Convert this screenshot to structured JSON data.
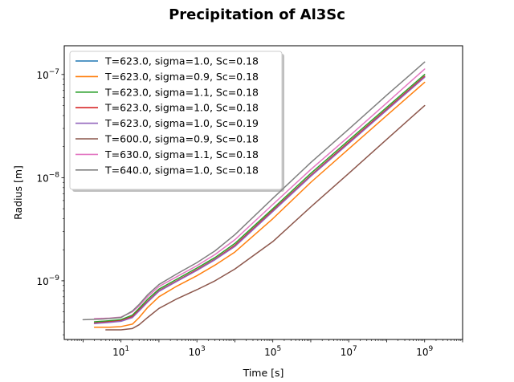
{
  "chart_data": {
    "type": "line",
    "title": "Precipitation of Al3Sc",
    "xlabel": "Time [s]",
    "ylabel": "Radius [m]",
    "xscale": "log",
    "yscale": "log",
    "xlim": [
      0.32,
      10000000000
    ],
    "ylim": [
      2.7e-10,
      1.9e-07
    ],
    "grid": false,
    "legend_position": "upper-left",
    "x_ticks": [
      {
        "value": 10,
        "base": "10",
        "exp": "1"
      },
      {
        "value": 1000,
        "base": "10",
        "exp": "3"
      },
      {
        "value": 100000,
        "base": "10",
        "exp": "5"
      },
      {
        "value": 10000000,
        "base": "10",
        "exp": "7"
      },
      {
        "value": 1000000000,
        "base": "10",
        "exp": "9"
      }
    ],
    "y_ticks": [
      {
        "value": 1e-09,
        "base": "10",
        "exp": "−9"
      },
      {
        "value": 1e-08,
        "base": "10",
        "exp": "−8"
      },
      {
        "value": 1e-07,
        "base": "10",
        "exp": "−7"
      }
    ],
    "series": [
      {
        "name": "T=623.0, sigma=1.0, Sc=0.18",
        "color": "#1f77b4",
        "x": [
          2,
          5,
          10,
          20,
          30,
          50,
          100,
          300,
          1000,
          3000,
          10000,
          100000,
          1000000,
          10000000,
          100000000,
          1000000000
        ],
        "y": [
          3.9e-10,
          4e-10,
          4.1e-10,
          4.5e-10,
          5.2e-10,
          6.3e-10,
          8e-10,
          1e-09,
          1.28e-09,
          1.62e-09,
          2.2e-09,
          4.8e-09,
          1.05e-08,
          2.2e-08,
          4.6e-08,
          9.6e-08
        ]
      },
      {
        "name": "T=623.0, sigma=0.9, Sc=0.18",
        "color": "#ff7f0e",
        "x": [
          2,
          5,
          10,
          20,
          30,
          50,
          100,
          300,
          1000,
          3000,
          10000,
          100000,
          1000000,
          10000000,
          100000000,
          1000000000
        ],
        "y": [
          3.55e-10,
          3.55e-10,
          3.6e-10,
          3.8e-10,
          4.4e-10,
          5.5e-10,
          7e-10,
          8.9e-10,
          1.12e-09,
          1.42e-09,
          1.9e-09,
          4e-09,
          9e-09,
          1.9e-08,
          4e-08,
          8.4e-08
        ]
      },
      {
        "name": "T=623.0, sigma=1.1, Sc=0.18",
        "color": "#2ca02c",
        "x": [
          2,
          5,
          10,
          20,
          30,
          50,
          100,
          300,
          1000,
          3000,
          10000,
          100000,
          1000000,
          10000000,
          100000000,
          1000000000
        ],
        "y": [
          4e-10,
          4.1e-10,
          4.2e-10,
          4.65e-10,
          5.4e-10,
          6.6e-10,
          8.3e-10,
          1.04e-09,
          1.33e-09,
          1.68e-09,
          2.3e-09,
          5e-09,
          1.1e-08,
          2.3e-08,
          4.8e-08,
          1e-07
        ]
      },
      {
        "name": "T=623.0, sigma=1.0, Sc=0.18",
        "color": "#d62728",
        "x": [
          2,
          5,
          10,
          20,
          30,
          50,
          100,
          300,
          1000,
          3000,
          10000,
          100000,
          1000000,
          10000000,
          100000000,
          1000000000
        ],
        "y": [
          3.9e-10,
          4e-10,
          4.1e-10,
          4.5e-10,
          5.2e-10,
          6.3e-10,
          8e-10,
          1e-09,
          1.28e-09,
          1.62e-09,
          2.2e-09,
          4.8e-09,
          1.05e-08,
          2.2e-08,
          4.6e-08,
          9.6e-08
        ]
      },
      {
        "name": "T=623.0, sigma=1.0, Sc=0.19",
        "color": "#9467bd",
        "x": [
          2,
          5,
          10,
          20,
          30,
          50,
          100,
          300,
          1000,
          3000,
          10000,
          100000,
          1000000,
          10000000,
          100000000,
          1000000000
        ],
        "y": [
          3.85e-10,
          3.95e-10,
          4.05e-10,
          4.4e-10,
          5.1e-10,
          6.2e-10,
          7.9e-10,
          9.9e-10,
          1.26e-09,
          1.6e-09,
          2.15e-09,
          4.7e-09,
          1.03e-08,
          2.15e-08,
          4.5e-08,
          9.4e-08
        ]
      },
      {
        "name": "T=600.0, sigma=0.9, Sc=0.18",
        "color": "#8c564b",
        "x": [
          4,
          10,
          20,
          30,
          50,
          100,
          300,
          1000,
          3000,
          10000,
          100000,
          1000000,
          10000000,
          100000000,
          1000000000
        ],
        "y": [
          3.35e-10,
          3.35e-10,
          3.45e-10,
          3.75e-10,
          4.4e-10,
          5.4e-10,
          6.7e-10,
          8.2e-10,
          1e-09,
          1.3e-09,
          2.4e-09,
          5.2e-09,
          1.1e-08,
          2.35e-08,
          5e-08
        ]
      },
      {
        "name": "T=630.0, sigma=1.1, Sc=0.18",
        "color": "#e377c2",
        "x": [
          2,
          5,
          10,
          20,
          30,
          50,
          100,
          300,
          1000,
          3000,
          10000,
          100000,
          1000000,
          10000000,
          100000000,
          1000000000
        ],
        "y": [
          4.3e-10,
          4.35e-10,
          4.45e-10,
          5e-10,
          5.7e-10,
          7e-10,
          8.8e-10,
          1.1e-09,
          1.4e-09,
          1.8e-09,
          2.5e-09,
          5.5e-09,
          1.2e-08,
          2.5e-08,
          5.3e-08,
          1.13e-07
        ]
      },
      {
        "name": "T=640.0, sigma=1.0, Sc=0.18",
        "color": "#7f7f7f",
        "x": [
          1,
          3,
          10,
          20,
          30,
          50,
          100,
          300,
          1000,
          3000,
          10000,
          100000,
          1000000,
          10000000,
          100000000,
          1000000000
        ],
        "y": [
          4.2e-10,
          4.25e-10,
          4.4e-10,
          5.1e-10,
          5.9e-10,
          7.3e-10,
          9.2e-10,
          1.17e-09,
          1.5e-09,
          1.95e-09,
          2.8e-09,
          6.3e-09,
          1.4e-08,
          2.95e-08,
          6.3e-08,
          1.32e-07
        ]
      }
    ]
  }
}
